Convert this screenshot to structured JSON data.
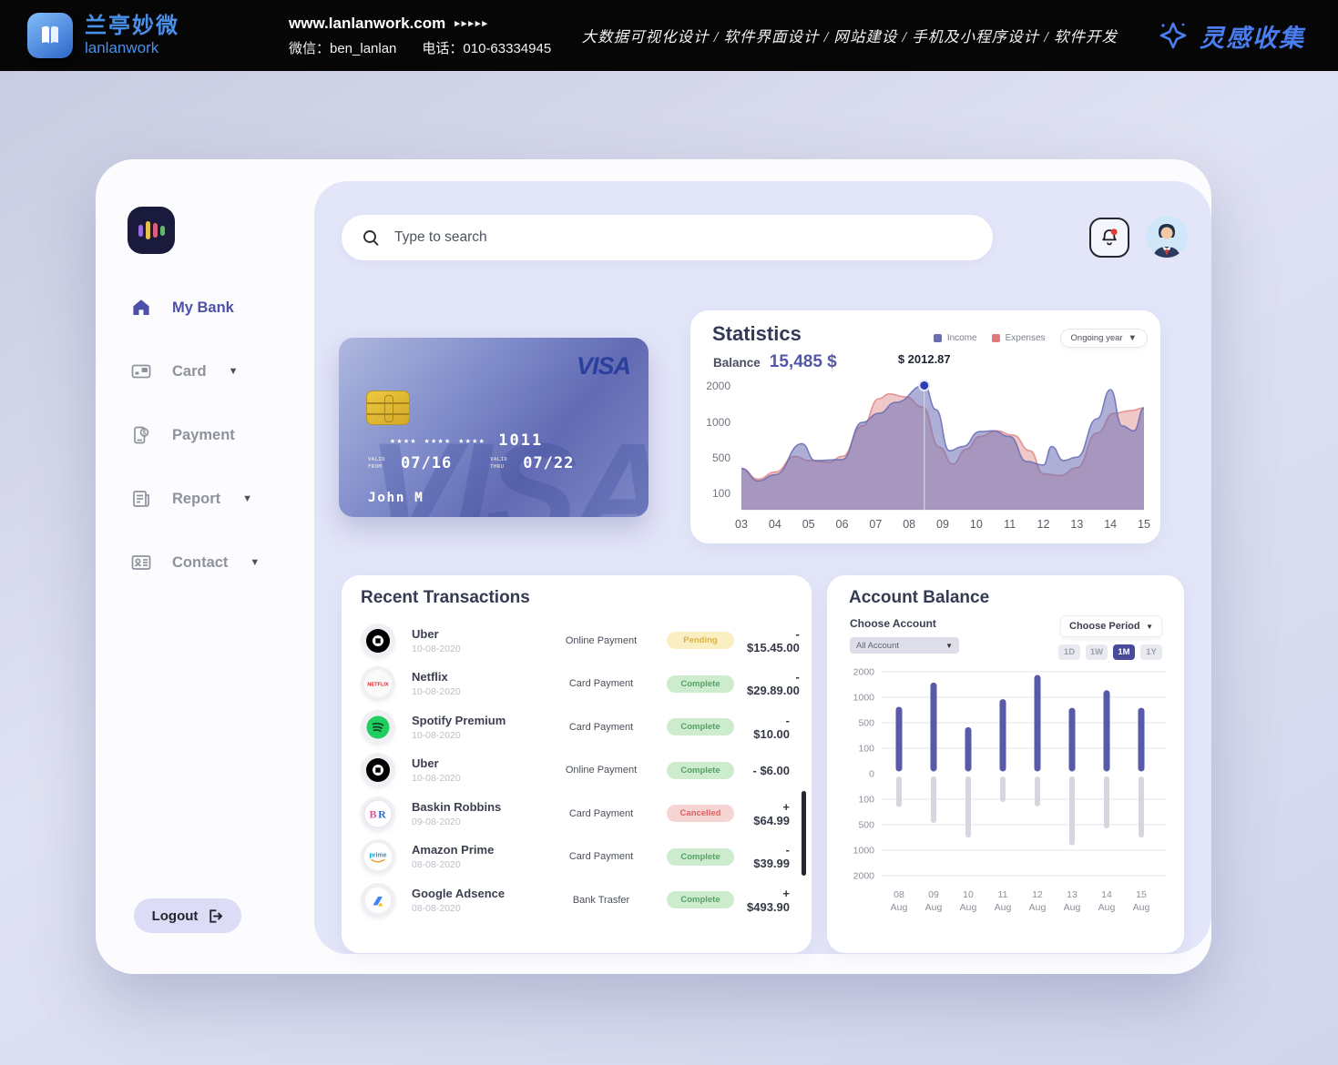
{
  "topbar": {
    "brand_cn": "兰亭妙微",
    "brand_en": "lanlanwork",
    "website": "www.lanlanwork.com",
    "website_arrows": "▸▸▸▸▸",
    "wechat_label": "微信：ben_lanlan",
    "phone_label": "电话：010-63334945",
    "services": "大数据可视化设计 / 软件界面设计 / 网站建设 / 手机及小程序设计 / 软件开发",
    "collect_brand": "灵感收集",
    "accent_blue": "#4a86e8"
  },
  "sidebar": {
    "app_icon": "equalizer-logo-icon",
    "items": [
      {
        "label": "My Bank",
        "icon": "home-icon",
        "active": true,
        "has_caret": false
      },
      {
        "label": "Card",
        "icon": "card-icon",
        "active": false,
        "has_caret": true
      },
      {
        "label": "Payment",
        "icon": "payment-icon",
        "active": false,
        "has_caret": false
      },
      {
        "label": "Report",
        "icon": "report-icon",
        "active": false,
        "has_caret": true
      },
      {
        "label": "Contact",
        "icon": "contact-icon",
        "active": false,
        "has_caret": true
      }
    ],
    "logout_label": "Logout"
  },
  "header": {
    "search_placeholder": "Type to search",
    "notification_icon": "bell-icon",
    "has_notification_dot": true
  },
  "bank_card": {
    "brand": "VISA",
    "watermark": "VISA",
    "number_mask": "★★★★ ★★★★ ★★★★",
    "last4": "1011",
    "valid_from_label": "VALID FROM",
    "valid_from": "07/16",
    "valid_thru_label": "VALID THRU",
    "valid_thru": "07/22",
    "holder": "John M"
  },
  "statistics": {
    "title": "Statistics",
    "balance_label": "Balance",
    "balance_value": "15,485 $",
    "legend": [
      {
        "label": "Income",
        "color": "#6a6db5"
      },
      {
        "label": "Expenses",
        "color": "#e07a7a"
      }
    ],
    "period_selector": "Ongoing year",
    "tooltip_label": "$ 2012.87"
  },
  "transactions": {
    "title": "Recent Transactions",
    "rows": [
      {
        "name": "Uber",
        "date": "10-08-2020",
        "type": "Online Payment",
        "status": "Pending",
        "amount": "- $15.45.00",
        "icon": "uber-icon"
      },
      {
        "name": "Netflix",
        "date": "10-08-2020",
        "type": "Card Payment",
        "status": "Complete",
        "amount": "- $29.89.00",
        "icon": "netflix-icon"
      },
      {
        "name": "Spotify Premium",
        "date": "10-08-2020",
        "type": "Card Payment",
        "status": "Complete",
        "amount": "- $10.00",
        "icon": "spotify-icon"
      },
      {
        "name": "Uber",
        "date": "10-08-2020",
        "type": "Online Payment",
        "status": "Complete",
        "amount": "- $6.00",
        "icon": "uber-icon"
      },
      {
        "name": "Baskin Robbins",
        "date": "09-08-2020",
        "type": "Card Payment",
        "status": "Cancelled",
        "amount": "+ $64.99",
        "icon": "baskin-robbins-icon"
      },
      {
        "name": "Amazon Prime",
        "date": "08-08-2020",
        "type": "Card Payment",
        "status": "Complete",
        "amount": "- $39.99",
        "icon": "amazon-prime-icon"
      },
      {
        "name": "Google Adsence",
        "date": "08-08-2020",
        "type": "Bank Trasfer",
        "status": "Complete",
        "amount": "+ $493.90",
        "icon": "google-adsense-icon"
      }
    ],
    "status_styles": {
      "Pending": "st-pending",
      "Complete": "st-complete",
      "Cancelled": "st-cancelled"
    }
  },
  "account_balance": {
    "title": "Account Balance",
    "choose_account_label": "Choose Account",
    "account_value": "All Account",
    "choose_period_label": "Choose Period",
    "periods": [
      "1D",
      "1W",
      "1M",
      "1Y"
    ],
    "active_period": "1M"
  },
  "chart_data": [
    {
      "id": "statistics_area",
      "type": "area",
      "title": "Statistics — Income vs Expenses, ongoing year",
      "x_ticks": [
        "03",
        "04",
        "05",
        "06",
        "07",
        "08",
        "09",
        "10",
        "11",
        "12",
        "13",
        "14",
        "15"
      ],
      "x_range": [
        3,
        15
      ],
      "y_ticks": [
        100,
        500,
        1000,
        2000
      ],
      "y_scale_note": "nonlinear: 0,100,500,1000,2000 evenly spaced",
      "grid": false,
      "legend_position": "top-right",
      "series": [
        {
          "name": "Expenses",
          "color": "#e08585",
          "fill_opacity": 0.45,
          "points": [
            [
              3,
              380
            ],
            [
              3.5,
              260
            ],
            [
              4,
              340
            ],
            [
              4.6,
              520
            ],
            [
              5,
              470
            ],
            [
              5.6,
              450
            ],
            [
              6,
              520
            ],
            [
              6.6,
              950
            ],
            [
              7.1,
              1650
            ],
            [
              7.4,
              1780
            ],
            [
              7.9,
              1700
            ],
            [
              8.4,
              1420
            ],
            [
              8.9,
              650
            ],
            [
              9.3,
              430
            ],
            [
              9.7,
              620
            ],
            [
              10.1,
              800
            ],
            [
              10.6,
              880
            ],
            [
              11.1,
              820
            ],
            [
              11.6,
              600
            ],
            [
              12,
              320
            ],
            [
              12.5,
              300
            ],
            [
              13,
              390
            ],
            [
              13.6,
              850
            ],
            [
              14.1,
              1250
            ],
            [
              14.6,
              1320
            ],
            [
              15,
              1400
            ]
          ]
        },
        {
          "name": "Income",
          "color": "#6a6db5",
          "fill_opacity": 0.55,
          "points": [
            [
              3,
              380
            ],
            [
              3.5,
              240
            ],
            [
              4,
              310
            ],
            [
              4.8,
              700
            ],
            [
              5.2,
              470
            ],
            [
              6,
              480
            ],
            [
              6.6,
              1000
            ],
            [
              7.1,
              1250
            ],
            [
              7.6,
              1550
            ],
            [
              8.45,
              2012.87
            ],
            [
              8.8,
              1350
            ],
            [
              9.2,
              600
            ],
            [
              9.6,
              660
            ],
            [
              10.1,
              870
            ],
            [
              10.5,
              880
            ],
            [
              11,
              800
            ],
            [
              11.5,
              460
            ],
            [
              12,
              420
            ],
            [
              12.25,
              660
            ],
            [
              12.6,
              470
            ],
            [
              13,
              510
            ],
            [
              13.6,
              1100
            ],
            [
              14,
              1900
            ],
            [
              14.35,
              950
            ],
            [
              14.7,
              880
            ],
            [
              15,
              1400
            ]
          ]
        }
      ],
      "highlight": {
        "x": 8.45,
        "value": 2012.87,
        "label": "$ 2012.87",
        "dot_color": "#2e3cb5"
      }
    },
    {
      "id": "account_balance_bars",
      "type": "bar",
      "title": "Account Balance by day (1M view)",
      "categories": [
        "08 Aug",
        "09 Aug",
        "10 Aug",
        "11 Aug",
        "12 Aug",
        "13 Aug",
        "14 Aug",
        "15 Aug"
      ],
      "y_ticks": [
        2000,
        1000,
        500,
        100,
        0,
        -100,
        -500,
        -1000,
        -2000
      ],
      "y_scale_note": "nonlinear mirrored: 0,100,500,1000,2000 evenly spaced each side",
      "grid": true,
      "series": [
        {
          "name": "Income",
          "color": "#575aa8",
          "values": [
            750,
            1450,
            380,
            900,
            1750,
            730,
            1150,
            730
          ]
        },
        {
          "name": "Expenses",
          "color": "#d6d6de",
          "values": [
            -180,
            -430,
            -700,
            -100,
            -170,
            -850,
            -520,
            -700
          ]
        }
      ]
    }
  ]
}
